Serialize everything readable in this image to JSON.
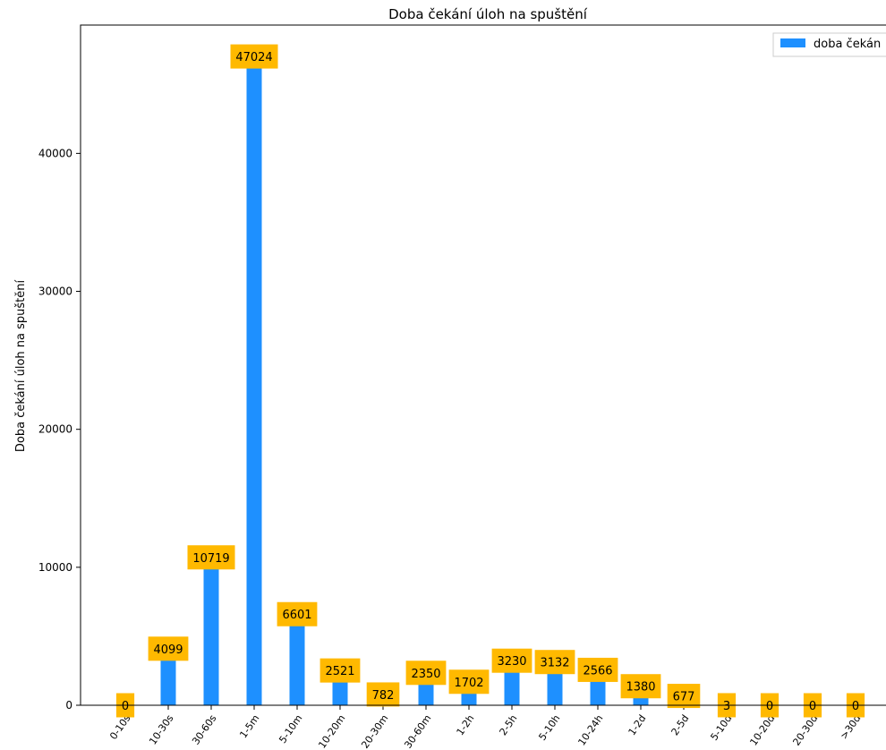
{
  "chart_data": {
    "type": "bar",
    "title": "Doba čekání úloh na spuštění",
    "xlabel": "",
    "ylabel": "Doba čekání úloh na spuštění",
    "categories": [
      "0-10s",
      "10-30s",
      "30-60s",
      "1-5m",
      "5-10m",
      "10-20m",
      "20-30m",
      "30-60m",
      "1-2h",
      "2-5h",
      "5-10h",
      "10-24h",
      "1-2d",
      "2-5d",
      "5-10d",
      "10-20d",
      "20-30d",
      ">30d"
    ],
    "series": [
      {
        "name": "doba čekán",
        "values": [
          0,
          4099,
          10719,
          47024,
          6601,
          2521,
          782,
          2350,
          1702,
          3230,
          3132,
          2566,
          1380,
          677,
          3,
          0,
          0,
          0
        ]
      }
    ],
    "ylim": [
      0,
      49300
    ],
    "yticks": [
      0,
      10000,
      20000,
      30000,
      40000
    ],
    "grid": false,
    "legend_position": "top-right",
    "bar_color": "#1e90ff",
    "label_bg_color": "#ffb900"
  }
}
